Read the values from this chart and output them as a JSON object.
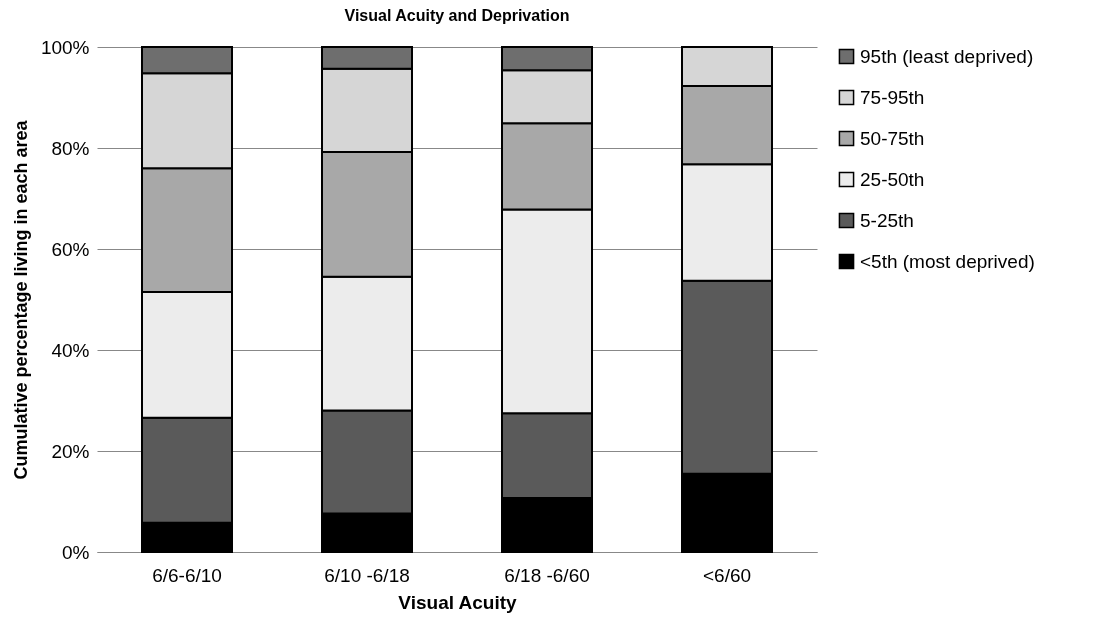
{
  "chart_data": {
    "type": "bar",
    "title": "Visual Acuity and Deprivation",
    "xlabel": "Visual Acuity",
    "ylabel": "Cumulative percentage living in each area",
    "categories": [
      "6/6-6/10",
      "6/10 -6/18",
      "6/18 -6/60",
      "<6/60"
    ],
    "stacked": true,
    "series": [
      {
        "name": "<5th  (most deprived)",
        "color": "#000000",
        "values": [
          5.8,
          7.6,
          10.7,
          15.5
        ]
      },
      {
        "name": "5-25th",
        "color": "#5a5a5a",
        "values": [
          20.8,
          20.4,
          16.8,
          38.2
        ]
      },
      {
        "name": "25-50th",
        "color": "#ececec",
        "values": [
          24.9,
          26.5,
          40.3,
          23.1
        ]
      },
      {
        "name": "50-75th",
        "color": "#a8a8a8",
        "values": [
          24.5,
          24.7,
          17.1,
          15.5
        ]
      },
      {
        "name": "75-95th",
        "color": "#d6d6d6",
        "values": [
          18.8,
          16.5,
          10.5,
          7.7
        ]
      },
      {
        "name": "95th (least deprived)",
        "color": "#6e6e6e",
        "values": [
          5.2,
          4.3,
          4.6,
          null
        ]
      }
    ],
    "ylim": [
      0,
      100
    ],
    "yticks": [
      {
        "value": 0,
        "label": "0%"
      },
      {
        "value": 20,
        "label": "20%"
      },
      {
        "value": 40,
        "label": "40%"
      },
      {
        "value": 60,
        "label": "60%"
      },
      {
        "value": 80,
        "label": "80%"
      },
      {
        "value": 100,
        "label": "100%"
      }
    ],
    "grid": "y",
    "legend": "right"
  }
}
